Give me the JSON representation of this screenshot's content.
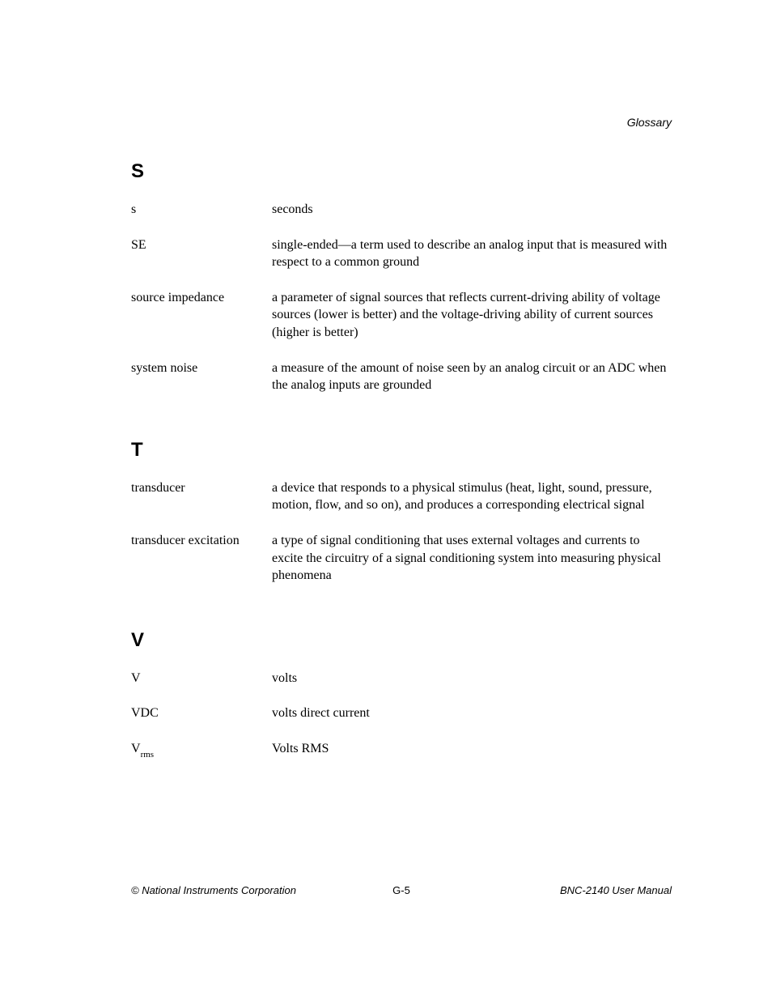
{
  "header": {
    "label": "Glossary"
  },
  "sections": {
    "s": {
      "letter": "S",
      "entries": {
        "0": {
          "term": "s",
          "definition": "seconds"
        },
        "1": {
          "term": "SE",
          "definition": "single-ended—a term used to describe an analog input that is measured with respect to a common ground"
        },
        "2": {
          "term": "source impedance",
          "definition": "a parameter of signal sources that reflects current-driving ability of voltage sources (lower is better) and the voltage-driving ability of current sources (higher is better)"
        },
        "3": {
          "term": "system noise",
          "definition": "a measure of the amount of noise seen by an analog circuit or an ADC when the analog inputs are grounded"
        }
      }
    },
    "t": {
      "letter": "T",
      "entries": {
        "0": {
          "term": "transducer",
          "definition": "a device that responds to a physical stimulus (heat, light, sound, pressure, motion, flow, and so on), and produces a corresponding electrical signal"
        },
        "1": {
          "term": "transducer excitation",
          "definition": "a type of signal conditioning that uses external voltages and currents to excite the circuitry of a signal conditioning system into measuring physical phenomena"
        }
      }
    },
    "v": {
      "letter": "V",
      "entries": {
        "0": {
          "term": "V",
          "definition": "volts"
        },
        "1": {
          "term": "VDC",
          "definition": "volts direct current"
        },
        "2": {
          "term_base": "V",
          "term_sub": "rms",
          "definition": "Volts RMS"
        }
      }
    }
  },
  "footer": {
    "left": "© National Instruments Corporation",
    "center": "G-5",
    "right": "BNC-2140 User Manual"
  }
}
